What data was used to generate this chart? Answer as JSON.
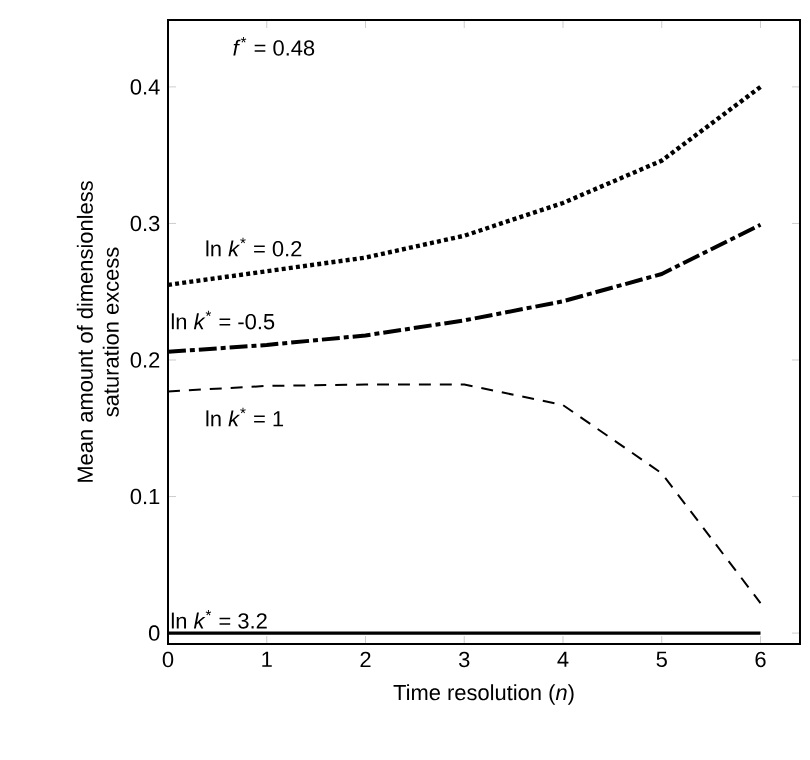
{
  "chart_data": {
    "type": "line",
    "xlabel": "Time resolution (*n*)",
    "ylabel": "Mean amount of dimensionless saturation excess",
    "x": [
      0,
      1,
      2,
      3,
      4,
      5,
      6
    ],
    "series": [
      {
        "name": "ln *k*$^{*}$ = 0.2",
        "color": "#000000",
        "line_style": "dotted",
        "values": [
          0.255,
          0.265,
          0.275,
          0.291,
          0.315,
          0.346,
          0.4
        ]
      },
      {
        "name": "ln *k*$^{*}$ = -0.5",
        "color": "#000000",
        "line_style": "dashdot",
        "values": [
          0.206,
          0.211,
          0.218,
          0.229,
          0.243,
          0.263,
          0.299
        ]
      },
      {
        "name": "ln *k*$^{*}$ = 1",
        "color": "#000000",
        "line_style": "dashed",
        "values": [
          0.177,
          0.181,
          0.182,
          0.182,
          0.167,
          0.117,
          0.022
        ]
      },
      {
        "name": "ln *k*$^{*}$ = 3.2",
        "color": "#000000",
        "line_style": "solid",
        "values": [
          0,
          0,
          0,
          0,
          0,
          0,
          0
        ]
      }
    ],
    "annotations": [
      "*f*$^{*}$ = 0.48"
    ],
    "xlim": [
      0,
      6.4
    ],
    "ylim": [
      -0.008,
      0.449
    ],
    "xticks": [
      0,
      1,
      2,
      3,
      4,
      5,
      6
    ],
    "yticks": [
      0,
      0.1,
      0.2,
      0.3,
      0.4
    ],
    "marker": "none"
  }
}
